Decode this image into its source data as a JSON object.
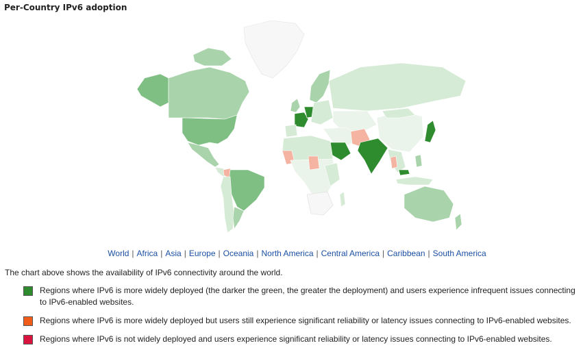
{
  "title": "Per-Country IPv6 adoption",
  "region_links": [
    "World",
    "Africa",
    "Asia",
    "Europe",
    "Oceania",
    "North America",
    "Central America",
    "Caribbean",
    "South America"
  ],
  "description": "The chart above shows the availability of IPv6 connectivity around the world.",
  "legend": [
    {
      "color": "#2e8b2e",
      "text": "Regions where IPv6 is more widely deployed (the darker the green, the greater the deployment) and users experience infrequent issues connecting to IPv6-enabled websites."
    },
    {
      "color": "#f25c19",
      "text": "Regions where IPv6 is more widely deployed but users still experience significant reliability or latency issues connecting to IPv6-enabled websites."
    },
    {
      "color": "#d9143f",
      "text": "Regions where IPv6 is not widely deployed and users experience significant reliability or latency issues connecting to IPv6-enabled websites."
    }
  ],
  "map_colors": {
    "dark_green": "#2e8b2e",
    "mid_green": "#7fbf84",
    "light_green": "#a9d3ab",
    "pale_green": "#d6ebd6",
    "very_pale": "#eaf4ea",
    "no_data": "#f7f7f7",
    "salmon": "#f5b3a1"
  }
}
